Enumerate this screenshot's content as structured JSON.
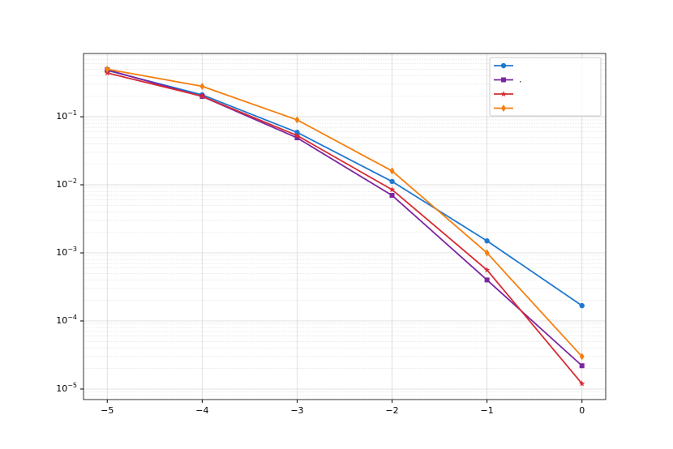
{
  "chart_data": {
    "type": "line",
    "x": [
      -5,
      -4,
      -3,
      -2,
      -1,
      0
    ],
    "series": [
      {
        "color": "#1f77d0",
        "marker": "circle",
        "values": [
          0.48,
          0.21,
          0.059,
          0.0112,
          0.0015,
          0.000168
        ]
      },
      {
        "name": ".",
        "color": "#7b25a0",
        "marker": "square",
        "values": [
          0.49,
          0.199,
          0.049,
          0.007,
          0.0004,
          2.2e-05
        ]
      },
      {
        "color": "#d62b33",
        "marker": "star",
        "values": [
          0.44,
          0.2,
          0.053,
          0.0085,
          0.00056,
          1.2e-05
        ]
      },
      {
        "color": "#f57f0f",
        "marker": "diamond",
        "values": [
          0.5,
          0.28,
          0.09,
          0.016,
          0.001,
          3e-05
        ]
      }
    ],
    "xlim": [
      -5.25,
      0.25
    ],
    "xticks": [
      {
        "value": -5,
        "label": "−5"
      },
      {
        "value": -4,
        "label": "−4"
      },
      {
        "value": -3,
        "label": "−3"
      },
      {
        "value": -2,
        "label": "−2"
      },
      {
        "value": -1,
        "label": "−1"
      },
      0
    ],
    "ylim": [
      7e-06,
      0.85
    ],
    "yticks": [
      {
        "value": 0.1,
        "label": "10^−1"
      },
      {
        "value": 0.01,
        "label": "10^−2"
      },
      {
        "value": 0.001,
        "label": "10^−3"
      },
      {
        "value": 0.0001,
        "label": "10^−4"
      },
      {
        "value": 1e-05,
        "label": "10^−5"
      }
    ],
    "yscale": "log",
    "grid": true,
    "minor_grid": true,
    "legend": "upper right"
  }
}
